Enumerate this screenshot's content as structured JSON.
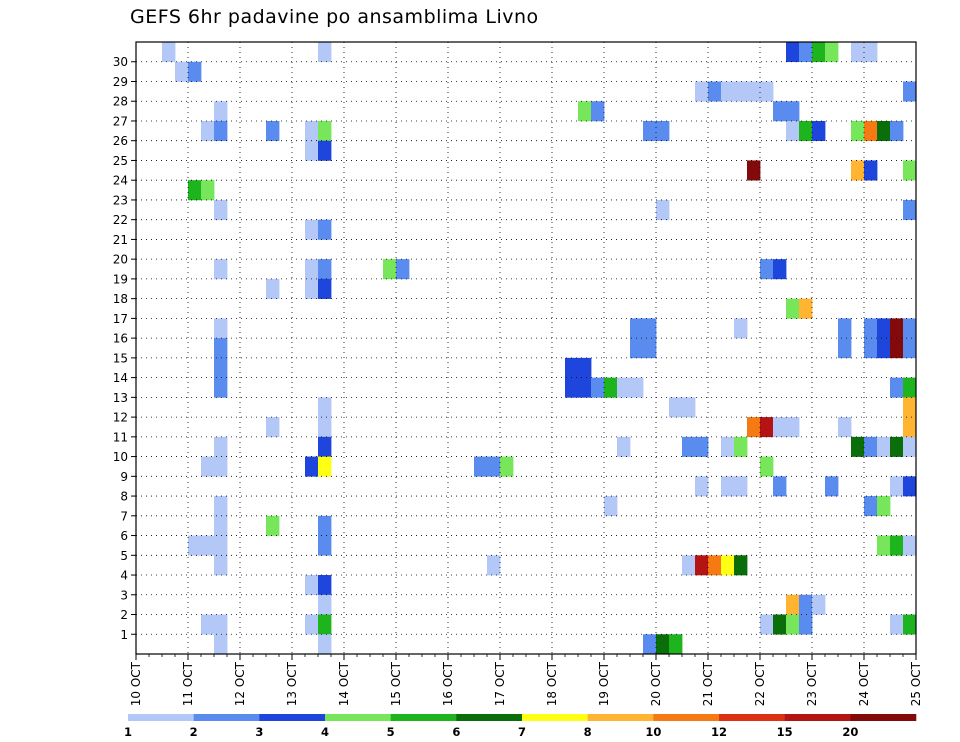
{
  "chart_data": {
    "type": "heatmap",
    "title": "GEFS 6hr padavine po ansamblima Livno",
    "x_tick_labels": [
      "10 OCT",
      "11 OCT",
      "12 OCT",
      "13 OCT",
      "14 OCT",
      "15 OCT",
      "16 OCT",
      "17 OCT",
      "18 OCT",
      "19 OCT",
      "20 OCT",
      "21 OCT",
      "22 OCT",
      "23 OCT",
      "24 OCT",
      "25 OCT"
    ],
    "y_tick_labels": [
      "1",
      "2",
      "3",
      "4",
      "5",
      "6",
      "7",
      "8",
      "9",
      "10",
      "11",
      "12",
      "13",
      "14",
      "15",
      "16",
      "17",
      "18",
      "19",
      "20",
      "21",
      "22",
      "23",
      "24",
      "25",
      "26",
      "27",
      "28",
      "29",
      "30"
    ],
    "x_steps_per_day": 4,
    "grid": true,
    "legend": {
      "position": "bottom",
      "labels": [
        "1",
        "2",
        "3",
        "4",
        "5",
        "6",
        "7",
        "8",
        "10",
        "12",
        "15",
        "20"
      ],
      "colors": [
        "#b4c8f8",
        "#5a8cf0",
        "#1e46dc",
        "#78e65a",
        "#1eb41e",
        "#0a6e0a",
        "#ffff14",
        "#ffb432",
        "#f57a14",
        "#dc3214",
        "#b41414",
        "#820a0a"
      ]
    },
    "cells": [
      [
        30,
        10.5,
        1
      ],
      [
        30,
        13.5,
        1
      ],
      [
        30,
        22.5,
        3
      ],
      [
        30,
        22.75,
        2
      ],
      [
        30,
        23.0,
        5
      ],
      [
        30,
        23.25,
        4
      ],
      [
        30,
        23.75,
        1
      ],
      [
        30,
        24.0,
        1
      ],
      [
        29,
        10.75,
        1
      ],
      [
        29,
        11.0,
        2
      ],
      [
        28,
        20.75,
        1
      ],
      [
        28,
        21.0,
        2
      ],
      [
        28,
        21.25,
        1
      ],
      [
        28,
        21.5,
        1
      ],
      [
        28,
        21.75,
        1
      ],
      [
        28,
        22.0,
        1
      ],
      [
        28,
        24.75,
        2
      ],
      [
        27,
        11.5,
        1
      ],
      [
        27,
        18.5,
        4
      ],
      [
        27,
        18.75,
        2
      ],
      [
        27,
        22.25,
        2
      ],
      [
        27,
        22.5,
        2
      ],
      [
        26,
        11.25,
        1
      ],
      [
        26,
        11.5,
        2
      ],
      [
        26,
        12.5,
        2
      ],
      [
        26,
        13.25,
        1
      ],
      [
        26,
        13.5,
        4
      ],
      [
        26,
        19.75,
        2
      ],
      [
        26,
        20.0,
        2
      ],
      [
        26,
        22.5,
        1
      ],
      [
        26,
        22.75,
        5
      ],
      [
        26,
        23.0,
        3
      ],
      [
        26,
        23.75,
        4
      ],
      [
        26,
        24.0,
        10
      ],
      [
        26,
        24.25,
        6
      ],
      [
        26,
        24.5,
        2
      ],
      [
        25,
        13.25,
        1
      ],
      [
        25,
        13.5,
        3
      ],
      [
        24,
        21.75,
        20
      ],
      [
        24,
        23.75,
        8
      ],
      [
        24,
        24.0,
        3
      ],
      [
        24,
        24.75,
        4
      ],
      [
        23,
        11.0,
        5
      ],
      [
        23,
        11.25,
        4
      ],
      [
        22,
        11.5,
        1
      ],
      [
        22,
        20.0,
        1
      ],
      [
        22,
        24.75,
        2
      ],
      [
        21,
        13.25,
        1
      ],
      [
        21,
        13.5,
        2
      ],
      [
        19,
        11.5,
        1
      ],
      [
        19,
        13.25,
        1
      ],
      [
        19,
        13.5,
        2
      ],
      [
        19,
        14.75,
        4
      ],
      [
        19,
        15.0,
        2
      ],
      [
        19,
        22.0,
        2
      ],
      [
        19,
        22.25,
        3
      ],
      [
        18,
        12.5,
        1
      ],
      [
        18,
        13.25,
        1
      ],
      [
        18,
        13.5,
        3
      ],
      [
        17,
        22.5,
        4
      ],
      [
        17,
        22.75,
        8
      ],
      [
        16,
        11.5,
        1
      ],
      [
        16,
        19.5,
        2
      ],
      [
        16,
        19.75,
        2
      ],
      [
        16,
        21.5,
        1
      ],
      [
        16,
        23.5,
        2
      ],
      [
        16,
        24.0,
        2
      ],
      [
        16,
        24.25,
        3
      ],
      [
        16,
        24.5,
        20
      ],
      [
        16,
        24.75,
        2
      ],
      [
        15,
        11.5,
        2
      ],
      [
        15,
        19.5,
        2
      ],
      [
        15,
        19.75,
        2
      ],
      [
        15,
        23.5,
        2
      ],
      [
        15,
        24.0,
        2
      ],
      [
        15,
        24.25,
        3
      ],
      [
        15,
        24.5,
        20
      ],
      [
        15,
        24.75,
        2
      ],
      [
        14,
        11.5,
        2
      ],
      [
        14,
        18.25,
        3
      ],
      [
        14,
        18.5,
        3
      ],
      [
        13,
        11.5,
        2
      ],
      [
        13,
        18.25,
        3
      ],
      [
        13,
        18.5,
        3
      ],
      [
        13,
        18.75,
        2
      ],
      [
        13,
        19.0,
        5
      ],
      [
        13,
        19.25,
        1
      ],
      [
        13,
        19.5,
        1
      ],
      [
        13,
        24.5,
        2
      ],
      [
        13,
        24.75,
        5
      ],
      [
        12,
        13.5,
        1
      ],
      [
        12,
        20.25,
        1
      ],
      [
        12,
        20.5,
        1
      ],
      [
        12,
        24.75,
        8
      ],
      [
        11,
        12.5,
        1
      ],
      [
        11,
        13.5,
        1
      ],
      [
        11,
        21.75,
        10
      ],
      [
        11,
        22.0,
        15
      ],
      [
        11,
        22.25,
        1
      ],
      [
        11,
        22.5,
        1
      ],
      [
        11,
        23.5,
        1
      ],
      [
        11,
        24.75,
        8
      ],
      [
        10,
        11.5,
        1
      ],
      [
        10,
        13.5,
        3
      ],
      [
        10,
        19.25,
        1
      ],
      [
        10,
        20.5,
        2
      ],
      [
        10,
        20.75,
        2
      ],
      [
        10,
        21.25,
        1
      ],
      [
        10,
        21.5,
        4
      ],
      [
        10,
        23.75,
        6
      ],
      [
        10,
        24.0,
        2
      ],
      [
        10,
        24.25,
        1
      ],
      [
        10,
        24.5,
        6
      ],
      [
        10,
        24.75,
        1
      ],
      [
        9,
        11.25,
        1
      ],
      [
        9,
        11.5,
        1
      ],
      [
        9,
        13.25,
        3
      ],
      [
        9,
        13.5,
        7
      ],
      [
        9,
        16.5,
        2
      ],
      [
        9,
        16.75,
        2
      ],
      [
        9,
        17.0,
        4
      ],
      [
        9,
        22.0,
        4
      ],
      [
        8,
        20.75,
        1
      ],
      [
        8,
        21.25,
        1
      ],
      [
        8,
        21.5,
        1
      ],
      [
        8,
        22.25,
        2
      ],
      [
        8,
        23.25,
        2
      ],
      [
        8,
        24.5,
        1
      ],
      [
        8,
        24.75,
        3
      ],
      [
        7,
        11.5,
        1
      ],
      [
        7,
        19.0,
        1
      ],
      [
        7,
        24.0,
        2
      ],
      [
        7,
        24.25,
        4
      ],
      [
        6,
        11.5,
        1
      ],
      [
        6,
        12.5,
        4
      ],
      [
        6,
        13.5,
        2
      ],
      [
        5,
        11.0,
        1
      ],
      [
        5,
        11.25,
        1
      ],
      [
        5,
        11.5,
        1
      ],
      [
        5,
        13.5,
        2
      ],
      [
        5,
        24.25,
        4
      ],
      [
        5,
        24.5,
        5
      ],
      [
        5,
        24.75,
        1
      ],
      [
        4,
        11.5,
        1
      ],
      [
        4,
        16.75,
        1
      ],
      [
        4,
        20.5,
        1
      ],
      [
        4,
        20.75,
        15
      ],
      [
        4,
        21.0,
        10
      ],
      [
        4,
        21.25,
        7
      ],
      [
        4,
        21.5,
        6
      ],
      [
        3,
        13.25,
        1
      ],
      [
        3,
        13.5,
        3
      ],
      [
        2,
        13.5,
        1
      ],
      [
        2,
        22.5,
        8
      ],
      [
        2,
        22.75,
        2
      ],
      [
        2,
        23.0,
        1
      ],
      [
        1,
        11.25,
        1
      ],
      [
        1,
        11.5,
        1
      ],
      [
        1,
        13.25,
        1
      ],
      [
        1,
        13.5,
        5
      ],
      [
        1,
        22.0,
        1
      ],
      [
        1,
        22.25,
        6
      ],
      [
        1,
        22.5,
        4
      ],
      [
        1,
        22.75,
        2
      ],
      [
        1,
        24.5,
        1
      ],
      [
        1,
        24.75,
        5
      ],
      [
        0,
        11.5,
        1
      ],
      [
        0,
        13.5,
        1
      ],
      [
        0,
        19.75,
        2
      ],
      [
        0,
        20.0,
        6
      ],
      [
        0,
        20.25,
        5
      ]
    ]
  }
}
